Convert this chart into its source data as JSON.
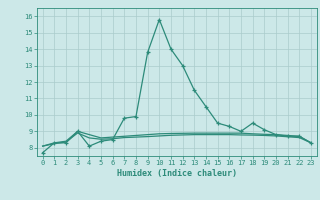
{
  "xlabel": "Humidex (Indice chaleur)",
  "x_values": [
    0,
    1,
    2,
    3,
    4,
    5,
    6,
    7,
    8,
    9,
    10,
    11,
    12,
    13,
    14,
    15,
    16,
    17,
    18,
    19,
    20,
    21,
    22,
    23
  ],
  "line1_y": [
    7.7,
    8.3,
    8.3,
    9.0,
    8.1,
    8.4,
    8.5,
    9.8,
    9.9,
    13.8,
    15.8,
    14.0,
    13.0,
    11.5,
    10.5,
    9.5,
    9.3,
    9.0,
    9.5,
    9.1,
    8.8,
    8.7,
    8.7,
    8.3
  ],
  "line2_y": [
    8.1,
    8.3,
    8.4,
    9.0,
    8.8,
    8.6,
    8.65,
    8.7,
    8.75,
    8.8,
    8.85,
    8.87,
    8.88,
    8.89,
    8.89,
    8.89,
    8.89,
    8.89,
    8.85,
    8.82,
    8.8,
    8.75,
    8.7,
    8.3
  ],
  "line3_y": [
    8.1,
    8.25,
    8.35,
    8.9,
    8.6,
    8.52,
    8.55,
    8.62,
    8.65,
    8.68,
    8.72,
    8.76,
    8.78,
    8.8,
    8.8,
    8.8,
    8.8,
    8.78,
    8.77,
    8.75,
    8.72,
    8.67,
    8.62,
    8.3
  ],
  "line_color": "#2d8b7a",
  "bg_color": "#cce8e8",
  "grid_color": "#aacccc",
  "ylim": [
    7.5,
    16.5
  ],
  "xlim": [
    -0.5,
    23.5
  ],
  "yticks": [
    8,
    9,
    10,
    11,
    12,
    13,
    14,
    15,
    16
  ],
  "xticks": [
    0,
    1,
    2,
    3,
    4,
    5,
    6,
    7,
    8,
    9,
    10,
    11,
    12,
    13,
    14,
    15,
    16,
    17,
    18,
    19,
    20,
    21,
    22,
    23
  ]
}
